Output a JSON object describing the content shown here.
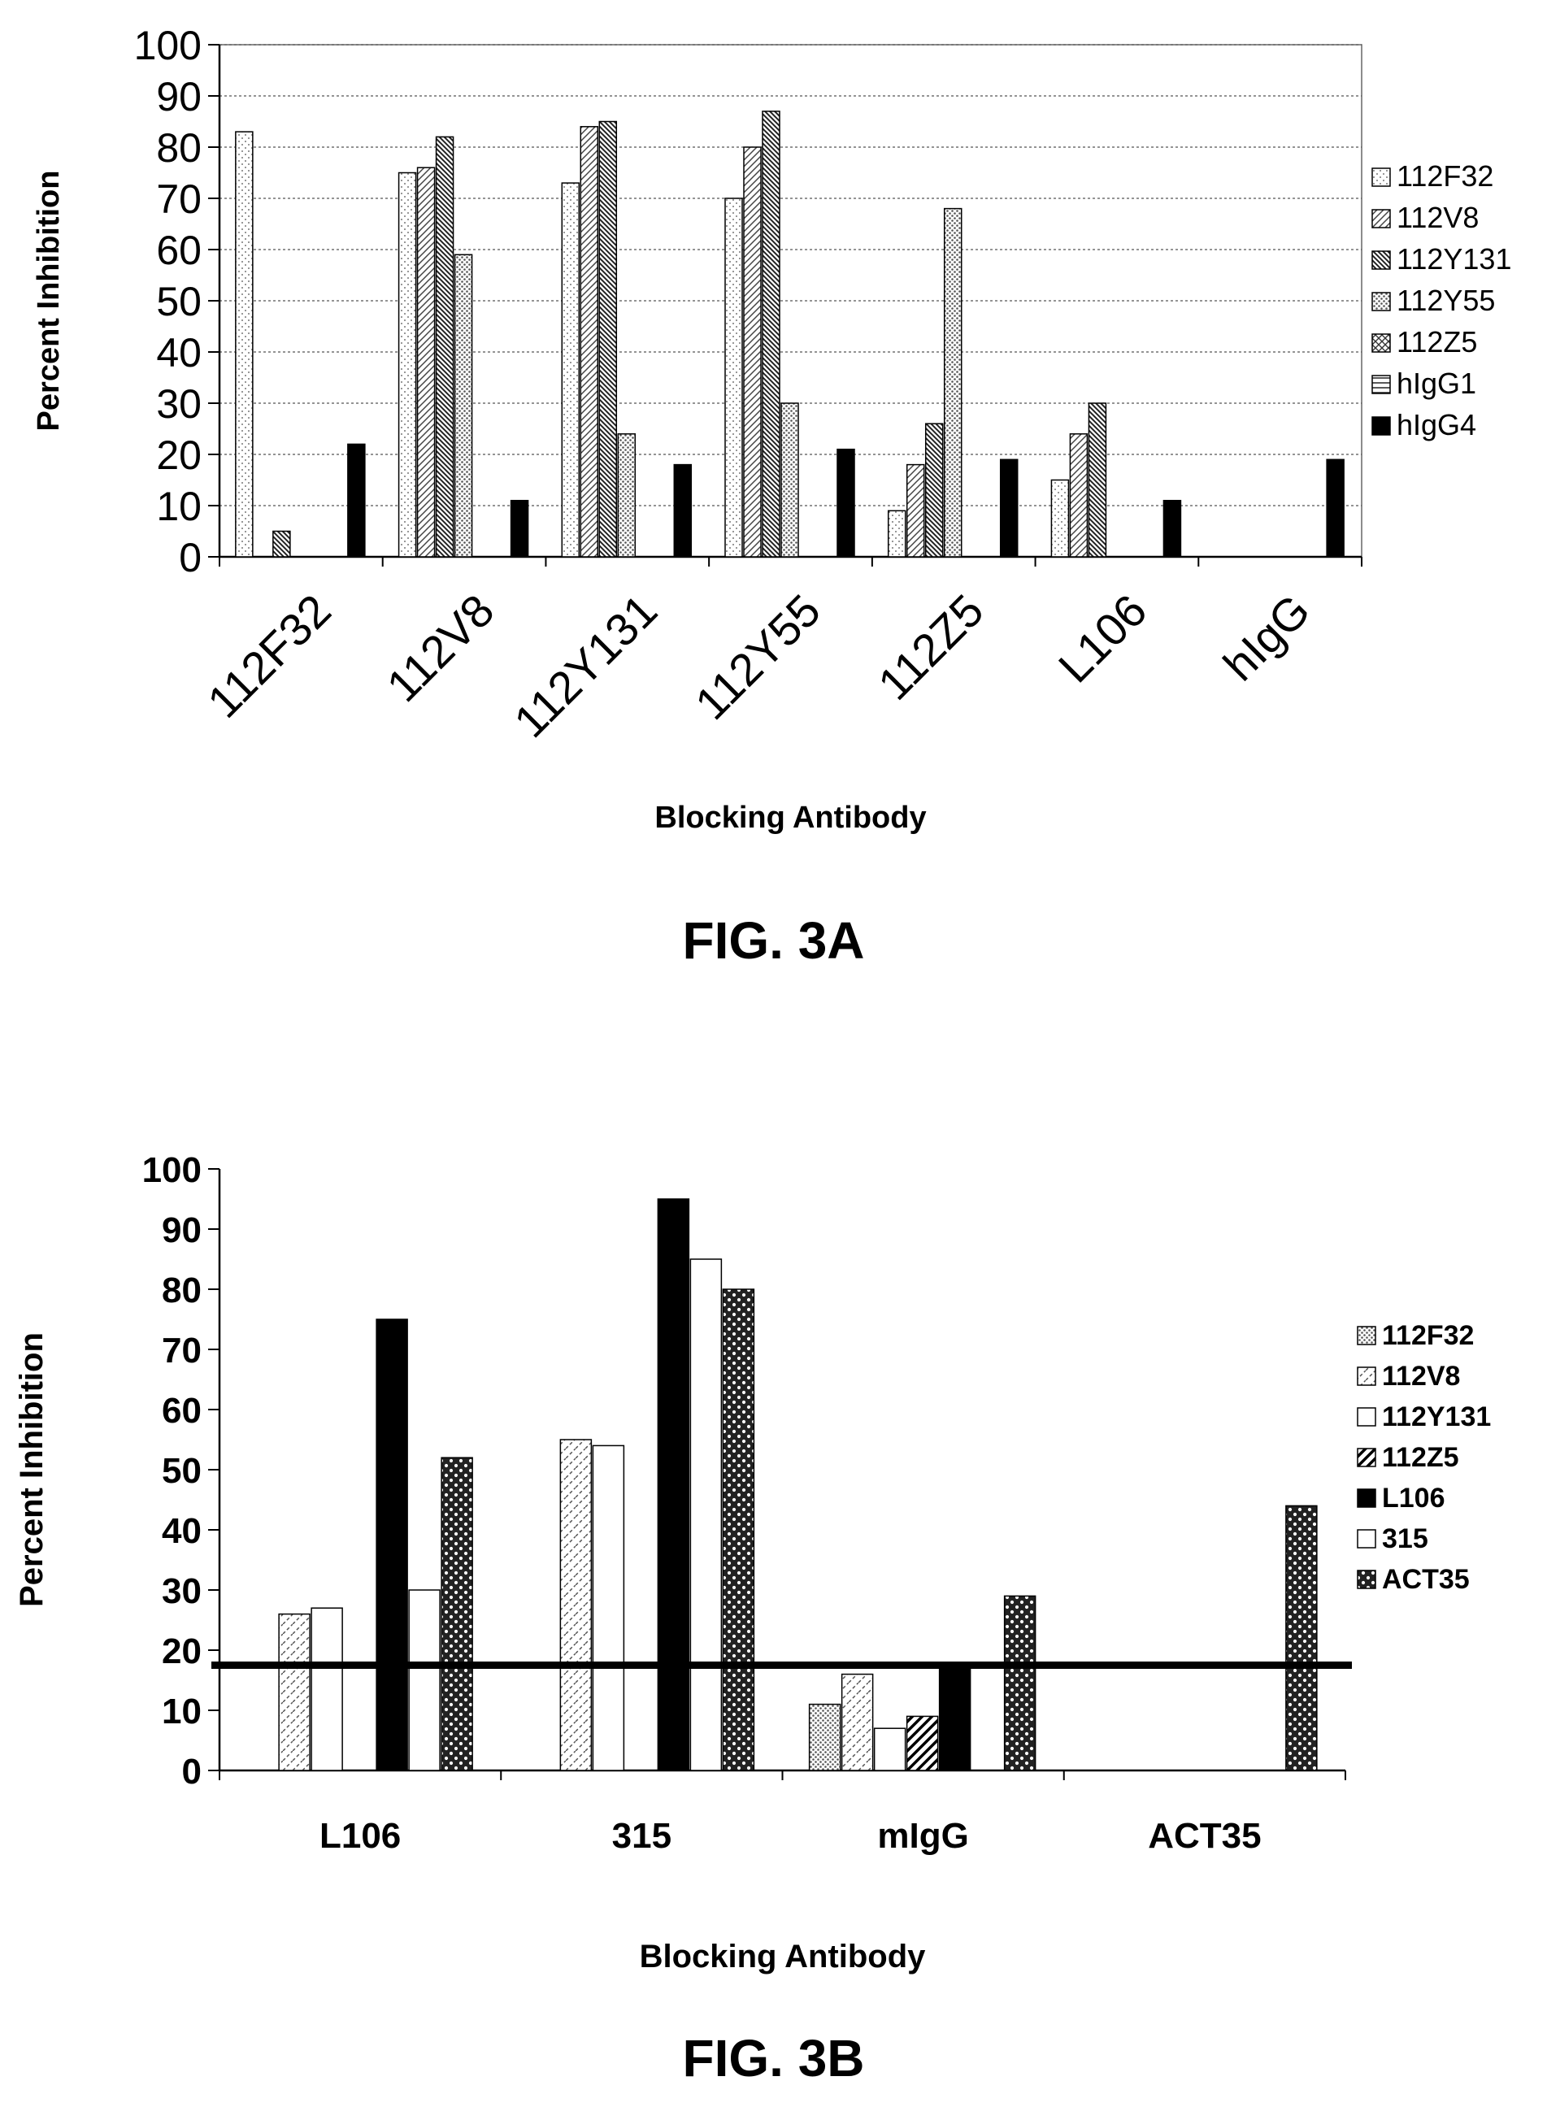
{
  "colors": {
    "ink": "#000000",
    "grid": "#555555",
    "background": "#ffffff"
  },
  "figures": [
    {
      "id": "3A",
      "caption": "FIG. 3A",
      "chart_data": {
        "type": "bar",
        "title": "",
        "xlabel": "Blocking Antibody",
        "ylabel": "Percent Inhibition",
        "ylim": [
          0,
          100
        ],
        "yticks": [
          "0",
          "10",
          "20",
          "30",
          "40",
          "50",
          "60",
          "70",
          "80",
          "90",
          "100"
        ],
        "grid": "horizontal dotted",
        "legend_position": "right",
        "categories": [
          "112F32",
          "112V8",
          "112Y131",
          "112Y55",
          "112Z5",
          "L106",
          "hIgG"
        ],
        "series": [
          {
            "name": "112F32",
            "pattern": "light-dots",
            "values": [
              83,
              75,
              73,
              70,
              9,
              15,
              0
            ]
          },
          {
            "name": "112V8",
            "pattern": "fine-diag",
            "values": [
              0,
              76,
              84,
              80,
              18,
              24,
              0
            ]
          },
          {
            "name": "112Y131",
            "pattern": "dense-diag",
            "values": [
              5,
              82,
              85,
              87,
              26,
              30,
              0
            ]
          },
          {
            "name": "112Y55",
            "pattern": "grey-dots",
            "values": [
              0,
              59,
              24,
              30,
              68,
              0,
              0
            ]
          },
          {
            "name": "112Z5",
            "pattern": "crosshatch",
            "values": [
              0,
              0,
              0,
              0,
              0,
              0,
              0
            ]
          },
          {
            "name": "hIgG1",
            "pattern": "horizontal-lines",
            "values": [
              0,
              0,
              0,
              0,
              0,
              0,
              0
            ]
          },
          {
            "name": "hIgG4",
            "pattern": "solid-black",
            "values": [
              22,
              11,
              18,
              21,
              19,
              11,
              19
            ]
          }
        ]
      }
    },
    {
      "id": "3B",
      "caption": "FIG. 3B",
      "chart_data": {
        "type": "bar",
        "title": "",
        "xlabel": "Blocking Antibody",
        "ylabel": "Percent Inhibition",
        "ylim": [
          0,
          100
        ],
        "yticks": [
          "0",
          "10",
          "20",
          "30",
          "40",
          "50",
          "60",
          "70",
          "80",
          "90",
          "100"
        ],
        "grid": "none",
        "legend_position": "right",
        "reference_line": 17.5,
        "categories": [
          "L106",
          "315",
          "mIgG",
          "ACT35"
        ],
        "series": [
          {
            "name": "112F32",
            "pattern": "grey-dots",
            "values": [
              0,
              0,
              11,
              0
            ]
          },
          {
            "name": "112V8",
            "pattern": "dash-diag",
            "values": [
              26,
              55,
              16,
              0
            ]
          },
          {
            "name": "112Y131",
            "pattern": "white",
            "values": [
              27,
              54,
              7,
              0
            ]
          },
          {
            "name": "112Z5",
            "pattern": "bold-diag",
            "values": [
              0,
              0,
              9,
              0
            ]
          },
          {
            "name": "L106",
            "pattern": "solid-black",
            "values": [
              75,
              95,
              18,
              0
            ]
          },
          {
            "name": "315",
            "pattern": "white",
            "values": [
              30,
              85,
              0,
              0
            ]
          },
          {
            "name": "ACT35",
            "pattern": "checker",
            "values": [
              52,
              80,
              29,
              44
            ]
          }
        ]
      }
    }
  ]
}
